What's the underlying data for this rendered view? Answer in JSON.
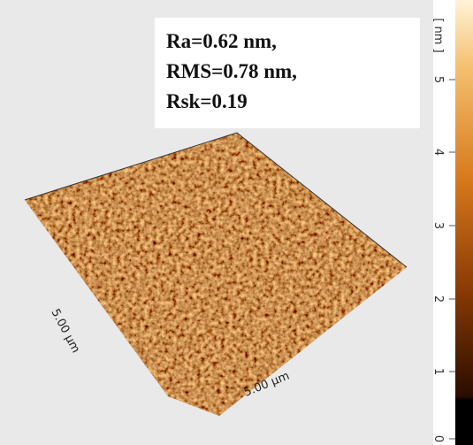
{
  "annotation": {
    "lines": [
      "Ra=0.62 nm,",
      "RMS=0.78 nm,",
      "Rsk=0.19"
    ]
  },
  "axes": {
    "left_label": "5.00 µm",
    "bottom_label": "5.00 µm"
  },
  "colorbar": {
    "unit": "[ nm ]",
    "ticks": [
      "5",
      "4",
      "3",
      "2",
      "1",
      "0"
    ]
  }
}
